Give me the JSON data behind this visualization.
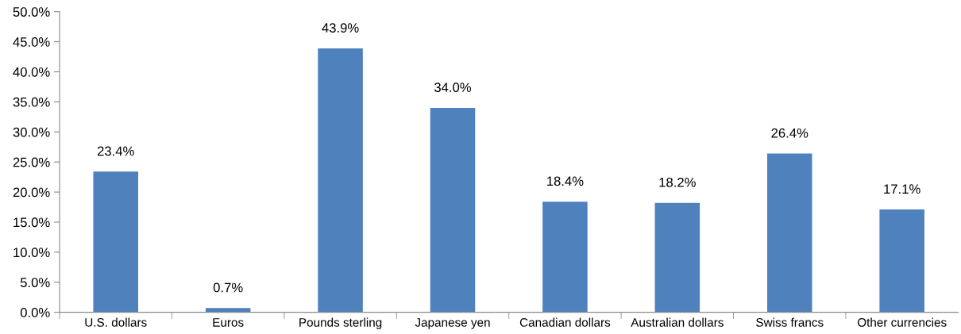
{
  "chart_data": {
    "type": "bar",
    "categories": [
      "U.S. dollars",
      "Euros",
      "Pounds sterling",
      "Japanese yen",
      "Canadian dollars",
      "Australian dollars",
      "Swiss francs",
      "Other currencies"
    ],
    "values": [
      23.4,
      0.7,
      43.9,
      34.0,
      18.4,
      18.2,
      26.4,
      17.1
    ],
    "value_labels": [
      "23.4%",
      "0.7%",
      "43.9%",
      "34.0%",
      "18.4%",
      "18.2%",
      "26.4%",
      "17.1%"
    ],
    "color": "#4f81bd",
    "ylim": [
      0,
      50
    ],
    "yticks": [
      {
        "value": 0,
        "label": "0.0%"
      },
      {
        "value": 5,
        "label": "5.0%"
      },
      {
        "value": 10,
        "label": "10.0%"
      },
      {
        "value": 15,
        "label": "15.0%"
      },
      {
        "value": 20,
        "label": "20.0%"
      },
      {
        "value": 25,
        "label": "25.0%"
      },
      {
        "value": 30,
        "label": "30.0%"
      },
      {
        "value": 35,
        "label": "35.0%"
      },
      {
        "value": 40,
        "label": "40.0%"
      },
      {
        "value": 45,
        "label": "45.0%"
      },
      {
        "value": 50,
        "label": "50.0%"
      }
    ],
    "grid": false
  }
}
